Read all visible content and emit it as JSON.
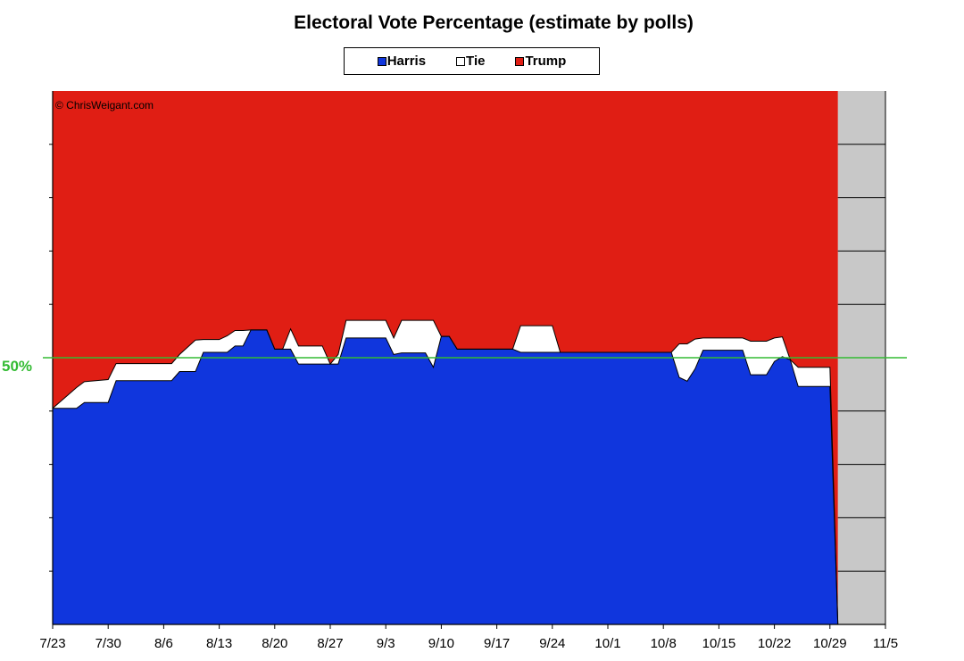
{
  "chart_data": {
    "type": "area",
    "stacked": true,
    "title": "Electoral Vote Percentage (estimate by polls)",
    "xlabel": "",
    "ylabel": "",
    "x_ticks": [
      "7/23",
      "7/30",
      "8/6",
      "8/13",
      "8/20",
      "8/27",
      "9/3",
      "9/10",
      "9/17",
      "9/24",
      "10/1",
      "10/8",
      "10/15",
      "10/22",
      "10/29",
      "11/5"
    ],
    "xlim": [
      "2024-07-23",
      "2024-11-05"
    ],
    "ylim": [
      0,
      100
    ],
    "legend_position": "top-center",
    "watermark": "© ChrisWeigant.com",
    "reference_line": {
      "value": 50,
      "label": "50%",
      "color": "#33bb33"
    },
    "future_region_color": "#c8c8c8",
    "x": [
      "2024-07-23",
      "2024-07-26",
      "2024-07-27",
      "2024-07-30",
      "2024-07-31",
      "2024-08-07",
      "2024-08-08",
      "2024-08-10",
      "2024-08-11",
      "2024-08-13",
      "2024-08-14",
      "2024-08-15",
      "2024-08-16",
      "2024-08-17",
      "2024-08-18",
      "2024-08-19",
      "2024-08-20",
      "2024-08-21",
      "2024-08-22",
      "2024-08-23",
      "2024-08-26",
      "2024-08-27",
      "2024-08-28",
      "2024-08-29",
      "2024-09-03",
      "2024-09-04",
      "2024-09-05",
      "2024-09-08",
      "2024-09-09",
      "2024-09-10",
      "2024-09-11",
      "2024-09-12",
      "2024-09-13",
      "2024-09-18",
      "2024-09-19",
      "2024-09-20",
      "2024-09-24",
      "2024-09-25",
      "2024-09-26",
      "2024-10-02",
      "2024-10-03",
      "2024-10-04",
      "2024-10-09",
      "2024-10-10",
      "2024-10-11",
      "2024-10-12",
      "2024-10-13",
      "2024-10-18",
      "2024-10-19",
      "2024-10-21",
      "2024-10-22",
      "2024-10-23",
      "2024-10-24",
      "2024-10-25",
      "2024-10-29",
      "2024-10-30"
    ],
    "series": [
      {
        "name": "Harris",
        "color": "#1036dd",
        "values": [
          40.5,
          40.5,
          41.6,
          41.6,
          45.7,
          45.7,
          47.4,
          47.4,
          51.0,
          51.0,
          51.0,
          52.2,
          52.2,
          55.2,
          55.2,
          55.2,
          51.6,
          51.6,
          51.6,
          48.8,
          48.8,
          48.8,
          48.8,
          53.7,
          53.7,
          50.6,
          50.9,
          50.9,
          48.2,
          54.0,
          54.0,
          51.6,
          51.6,
          51.6,
          51.6,
          51.0,
          51.0,
          51.0,
          51.0,
          51.0,
          51.0,
          51.0,
          51.0,
          46.3,
          45.6,
          47.9,
          51.4,
          51.4,
          46.8,
          46.8,
          49.3,
          50.2,
          49.6,
          44.6,
          44.6,
          0
        ]
      },
      {
        "name": "Tie",
        "color": "#ffffff",
        "values": [
          0,
          3.9,
          3.9,
          4.3,
          3.2,
          3.2,
          3.2,
          5.9,
          2.4,
          2.4,
          3.1,
          2.9,
          2.9,
          0,
          0,
          0,
          0,
          0,
          3.8,
          3.4,
          3.4,
          0,
          1.8,
          3.3,
          3.3,
          3.1,
          6.1,
          6.1,
          8.8,
          0,
          0,
          0,
          0,
          0,
          0,
          5.0,
          5.0,
          0,
          0,
          0,
          0,
          0,
          0,
          6.3,
          7.0,
          5.6,
          2.3,
          2.3,
          6.3,
          6.3,
          4.4,
          3.7,
          0,
          3.6,
          3.6,
          0
        ]
      },
      {
        "name": "Trump",
        "color": "#e01e14",
        "values": [
          59.5,
          55.6,
          54.5,
          54.1,
          51.1,
          51.1,
          49.4,
          46.7,
          46.6,
          46.6,
          45.9,
          44.9,
          44.9,
          44.8,
          44.8,
          44.8,
          48.4,
          48.4,
          44.6,
          47.8,
          47.8,
          51.2,
          49.4,
          43.0,
          43.0,
          46.3,
          43.0,
          43.0,
          43.0,
          46.0,
          46.0,
          48.4,
          48.4,
          48.4,
          48.4,
          44.0,
          44.0,
          49.0,
          49.0,
          49.0,
          49.0,
          49.0,
          49.0,
          47.4,
          47.4,
          46.5,
          46.3,
          46.3,
          46.9,
          46.9,
          46.3,
          46.1,
          50.4,
          51.8,
          51.8,
          100
        ]
      }
    ]
  }
}
